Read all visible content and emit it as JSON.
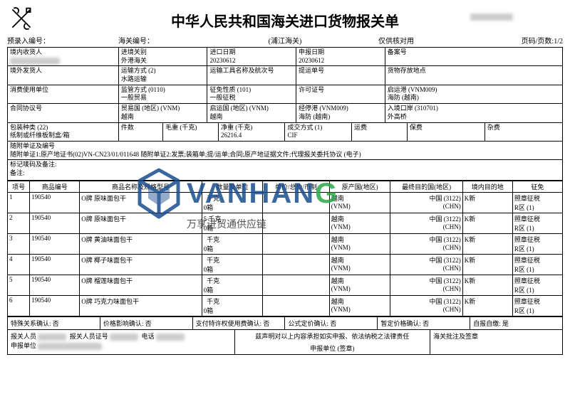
{
  "header": {
    "title": "中华人民共和国海关进口货物报关单",
    "prerecord_label": "预录入编号：",
    "customs_code_label": "海关编号：",
    "customs_name": "(浦江海关)",
    "note": "仅供核对用",
    "page_label": "页码/页数:1/2"
  },
  "fields": {
    "r1c1_lbl": "境内收货人",
    "r1c1_val": "",
    "r1c2_lbl": "进境关别",
    "r1c2_val": "外港海关",
    "r1c3_lbl": "进口日期",
    "r1c3_val": "20230612",
    "r1c4_lbl": "申报日期",
    "r1c4_val": "20230612",
    "r1c5_lbl": "备案号",
    "r1c5_val": "",
    "r2c1_lbl": "境外发货人",
    "r2c1_val": "",
    "r2c2_lbl": "运输方式 (2)",
    "r2c2_val": "水路运输",
    "r2c3_lbl": "运输工具名称及航次号",
    "r2c3_val": "",
    "r2c4_lbl": "提运单号",
    "r2c4_val": "",
    "r2c5_lbl": "货物存放地点",
    "r2c5_val": "",
    "r3c1_lbl": "消费使用单位",
    "r3c1_val": "",
    "r3c2_lbl": "监管方式 (0110)",
    "r3c2_val": "一般贸易",
    "r3c3_lbl": "征免性质 (101)",
    "r3c3_val": "一般征税",
    "r3c4_lbl": "许可证号",
    "r3c4_val": "",
    "r3c5_lbl": "启运港 (VNM009)",
    "r3c5_val": "海防 (越南)",
    "r4c1_lbl": "合同协议号",
    "r4c1_val": "",
    "r4c2_lbl": "贸易国 (地区) (VNM)",
    "r4c2_val": "越南",
    "r4c3_lbl": "启运国 (地区) (VNM)",
    "r4c3_val": "越南",
    "r4c4_lbl": "经停港 (VNM009)",
    "r4c4_val": "海防 (越南)",
    "r4c5_lbl": "入境口岸 (310701)",
    "r4c5_val": "外高桥",
    "r5c1_lbl": "包装种类 (22)",
    "r5c1_val": "纸制或纤维板制盒/箱",
    "r5c2_lbl": "件数",
    "r5c2_val": "",
    "r5c3_lbl": "毛重 (千克)",
    "r5c3_val": "",
    "r5c4_lbl": "净重 (千克)",
    "r5c4_val": "26216.4",
    "r5c5_lbl": "成交方式 (1)",
    "r5c5_val": "CIF",
    "r5c6_lbl": "运费",
    "r5c6_val": "",
    "r5c7_lbl": "保费",
    "r5c7_val": "",
    "r5c8_lbl": "杂费",
    "r5c8_val": "",
    "attach_lbl": "随附单证及编号",
    "attach_val": "随附单证1:原产地证书(02)VN-CN23/01/011648  随附单证2:发票;装箱单;提/运单;合同;原产地证据文件;代理报关委托协议 (电子)",
    "mark_lbl": "标记唛码及备注:",
    "remark_lbl": "备注:"
  },
  "items": {
    "headers": [
      "项号",
      "商品编号",
      "商品名称及规格型号",
      "数量及单位",
      "单价/总价/币制",
      "原产国(地区)",
      "最终目的国(地区)",
      "境内目的地",
      "征免"
    ],
    "rows": [
      {
        "no": "1",
        "code": "190540",
        "name": "O牌 原味面包干",
        "qty_top": "",
        "qty_bot": "0箱",
        "unit": "千克",
        "origin": "越南",
        "origin_code": "(VNM)",
        "dest": "中国",
        "dest_code": "(CHN)",
        "dest_num": "(3122)",
        "dom": "K新",
        "tax": "照章征税",
        "tax2": "R区   (1)"
      },
      {
        "no": "2",
        "code": "190540",
        "name": "O牌 原味面包干",
        "qty_top": "5",
        "qty_bot": "0箱",
        "unit": "千克",
        "origin": "越南",
        "origin_code": "(VNM)",
        "dest": "中国",
        "dest_code": "(CHN)",
        "dest_num": "(3122)",
        "dom": "K新",
        "tax": "照章征税",
        "tax2": "R区   (1)"
      },
      {
        "no": "3",
        "code": "190540",
        "name": "O牌 黄油味面包干",
        "qty_top": "",
        "qty_bot": "0箱",
        "unit": "千克",
        "origin": "越南",
        "origin_code": "(VNM)",
        "dest": "中国",
        "dest_code": "(CHN)",
        "dest_num": "(3122)",
        "dom": "K新",
        "tax": "照章征税",
        "tax2": "R区   (1)"
      },
      {
        "no": "4",
        "code": "190540",
        "name": "O牌 椰子味面包干",
        "qty_top": "",
        "qty_bot": "0箱",
        "unit": "千克",
        "origin": "越南",
        "origin_code": "(VNM)",
        "dest": "中国",
        "dest_code": "(CHN)",
        "dest_num": "(3122)",
        "dom": "K新",
        "tax": "照章征税",
        "tax2": "R区   (1)"
      },
      {
        "no": "5",
        "code": "190540",
        "name": "O牌 榴莲味面包干",
        "qty_top": "",
        "qty_bot": "0箱",
        "unit": "千克",
        "origin": "越南",
        "origin_code": "(VNM)",
        "dest": "中国",
        "dest_code": "(CHN)",
        "dest_num": "(3122)",
        "dom": "K新",
        "tax": "照章征税",
        "tax2": "R区   (1)"
      },
      {
        "no": "6",
        "code": "190540",
        "name": "O牌 巧克力味面包干",
        "qty_top": "",
        "qty_bot": "0箱",
        "unit": "千克",
        "origin": "越南",
        "origin_code": "(VNM)",
        "dest": "中国",
        "dest_code": "(CHN)",
        "dest_num": "(3122)",
        "dom": "K新",
        "tax": "照章征税",
        "tax2": "R区   (1)"
      }
    ]
  },
  "footer": {
    "f1": "特殊关系确认: 否",
    "f2": "价格影响确认: 否",
    "f3": "支付特许权使用费确认: 否",
    "f4": "公式定价确认: 否",
    "f5": "暂定价格确认: 否",
    "f6": "自报自缴: 是",
    "declarer_lbl": "报关人员",
    "declarer_id_lbl": "报关人员证号",
    "phone_lbl": "电话",
    "declare_text": "兹声明对以上内容承担如实申报、依法纳税之法律责任",
    "customs_sign": "海关批注及签章",
    "apply_unit_lbl": "申报单位",
    "apply_seal": "申报单位 (签章)"
  },
  "watermark": {
    "brand": "VANHAN",
    "brand_g": "G",
    "sub": "万享进贸通供应链"
  },
  "colors": {
    "border": "#000000",
    "brand_blue": "#1a4d8f",
    "brand_green": "#2aa84a"
  }
}
